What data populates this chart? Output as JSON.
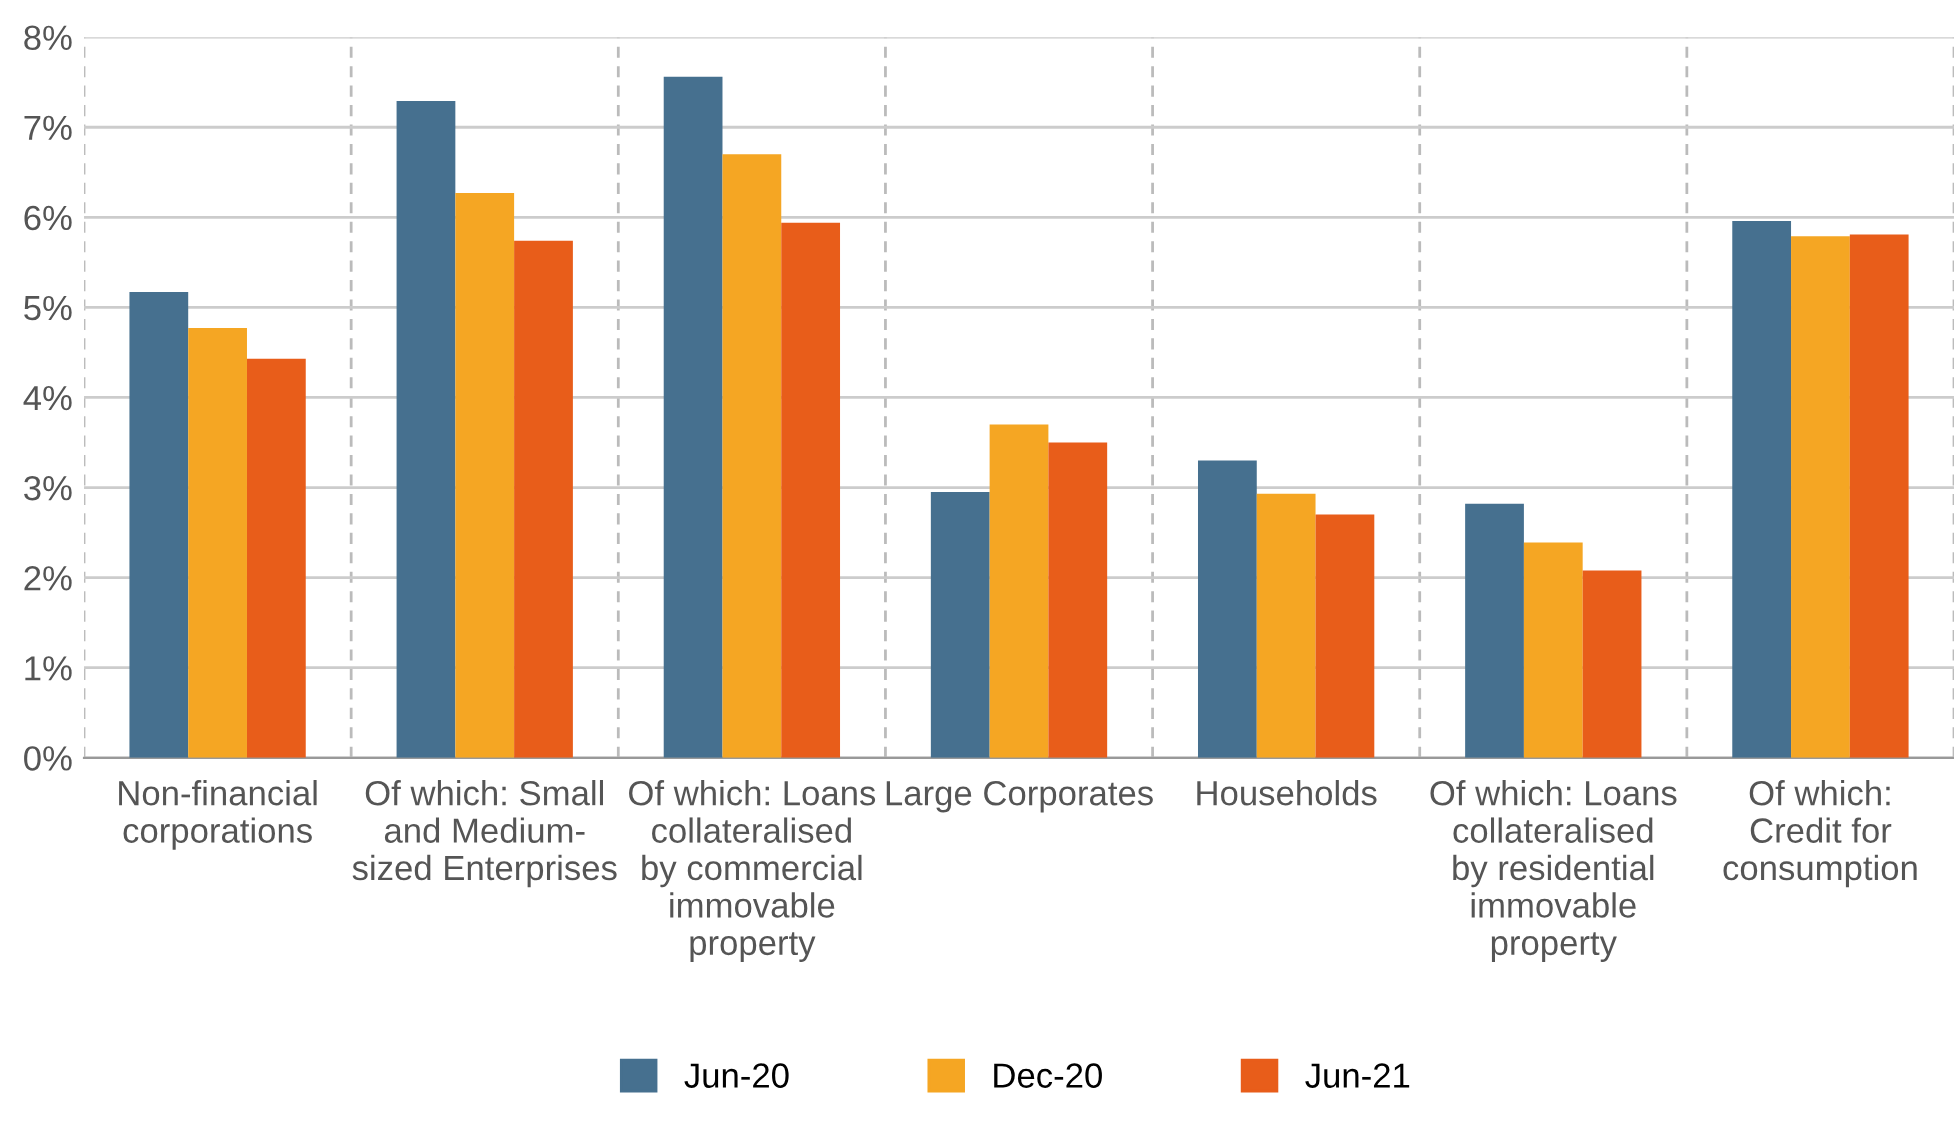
{
  "chart_data": {
    "type": "bar",
    "categories": [
      "Non-financial\ncorporations",
      "Of which: Small\nand Medium-\nsized Enterprises",
      "Of which: Loans\ncollateralised\nby commercial\nimmovable\nproperty",
      "Large Corporates",
      "Households",
      "Of which: Loans\ncollateralised\nby residential\nimmovable\nproperty",
      "Of which:\nCredit for\nconsumption"
    ],
    "series": [
      {
        "name": "Jun-20",
        "color": "#46708f",
        "values": [
          5.17,
          7.29,
          7.56,
          2.95,
          3.3,
          2.82,
          5.96
        ]
      },
      {
        "name": "Dec-20",
        "color": "#f5a623",
        "values": [
          4.77,
          6.27,
          6.7,
          3.7,
          2.93,
          2.39,
          5.79
        ]
      },
      {
        "name": "Jun-21",
        "color": "#e85d1a",
        "values": [
          4.43,
          5.74,
          5.94,
          3.5,
          2.7,
          2.08,
          5.81
        ]
      }
    ],
    "ylim": [
      0,
      8
    ],
    "yticks": [
      {
        "value": 0,
        "label": "0%"
      },
      {
        "value": 1,
        "label": "1%"
      },
      {
        "value": 2,
        "label": "2%"
      },
      {
        "value": 3,
        "label": "3%"
      },
      {
        "value": 4,
        "label": "4%"
      },
      {
        "value": 5,
        "label": "5%"
      },
      {
        "value": 6,
        "label": "6%"
      },
      {
        "value": 7,
        "label": "7%"
      },
      {
        "value": 8,
        "label": "8%"
      }
    ],
    "grid": true,
    "legend": "bottom"
  }
}
